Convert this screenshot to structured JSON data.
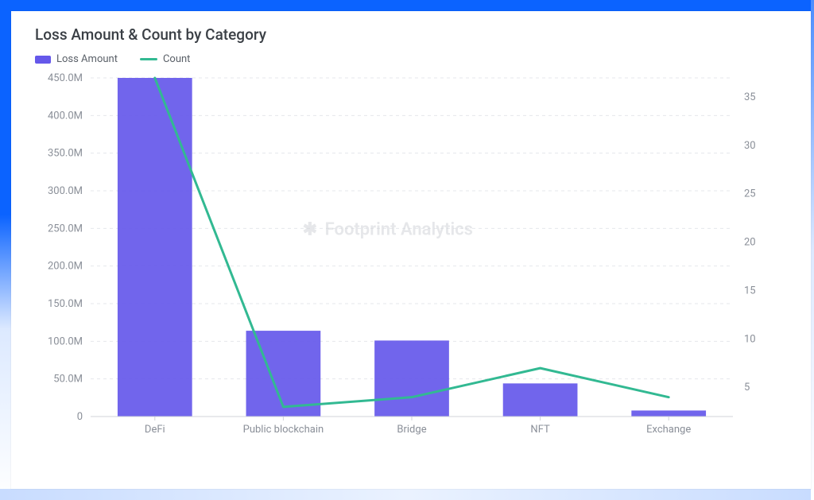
{
  "title": "Loss Amount & Count by Category",
  "legend": {
    "bar_label": "Loss Amount",
    "line_label": "Count"
  },
  "watermark": "Footprint Analytics",
  "chart": {
    "type": "bar+line",
    "categories": [
      "DeFi",
      "Public blockchain",
      "Bridge",
      "NFT",
      "Exchange"
    ],
    "bar_values": [
      455,
      114,
      101,
      44,
      8
    ],
    "line_values": [
      39,
      1,
      2,
      5,
      2
    ],
    "bar_color": "#6558ea",
    "line_color": "#32b992",
    "left_axis": {
      "min": 0,
      "max": 450,
      "step": 50,
      "labels": [
        "0",
        "50.0M",
        "100.0M",
        "150.0M",
        "200.0M",
        "250.0M",
        "300.0M",
        "350.0M",
        "400.0M",
        "450.0M"
      ]
    },
    "right_axis": {
      "min": 0,
      "max": 35,
      "step": 5,
      "labels": [
        "5",
        "10",
        "15",
        "20",
        "25",
        "30",
        "35"
      ]
    },
    "grid_color": "#e5e7eb",
    "axis_line_color": "#d0d3d8",
    "background_color": "#ffffff",
    "text_color": "#8a8f98",
    "bar_width_ratio": 0.58,
    "line_width": 3,
    "title_fontsize": 19,
    "axis_fontsize": 13
  }
}
